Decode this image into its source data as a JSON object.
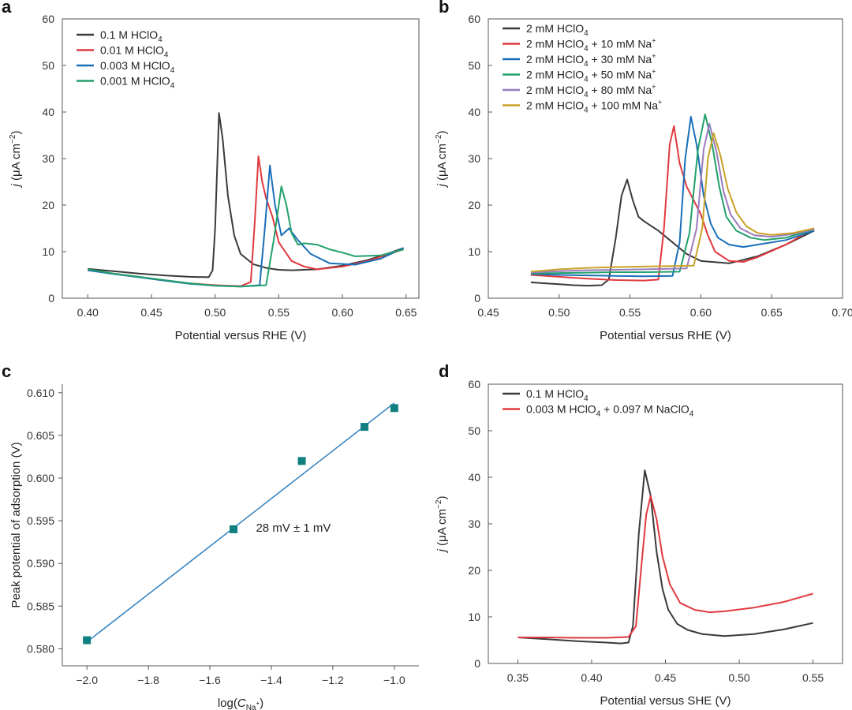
{
  "colors": {
    "black": "#3a3a3a",
    "red": "#e0393f",
    "blue": "#1a6fb8",
    "green": "#22a06b",
    "purple": "#9a7bbd",
    "gold": "#c9a227",
    "teal": "#0f7f80",
    "fitline": "#2f7fbf"
  },
  "chart_data": [
    {
      "panel": "a",
      "type": "line",
      "title": "",
      "xlabel": "Potential versus RHE (V)",
      "ylabel": "j (μA cm−2)",
      "ylabel_italic": "j",
      "ylabel_rest": " (μA cm",
      "ylabel_sup": "−2",
      "ylabel_close": ")",
      "xlim": [
        0.38,
        0.66
      ],
      "ylim": [
        0,
        60
      ],
      "xticks": [
        0.4,
        0.45,
        0.5,
        0.55,
        0.6,
        0.65
      ],
      "xtick_labels": [
        "0.40",
        "0.45",
        "0.50",
        "0.55",
        "0.60",
        "0.65"
      ],
      "yticks": [
        0,
        10,
        20,
        30,
        40,
        50,
        60
      ],
      "ytick_labels": [
        "0",
        "10",
        "20",
        "30",
        "40",
        "50",
        "60"
      ],
      "legend_position": "top-left",
      "series": [
        {
          "name": "0.1 M HClO4",
          "label_pre": "0.1 M HClO",
          "label_sub": "4",
          "label_post": "",
          "label_sup": "",
          "color": "black",
          "x": [
            0.4,
            0.42,
            0.44,
            0.46,
            0.48,
            0.495,
            0.498,
            0.5,
            0.503,
            0.506,
            0.51,
            0.515,
            0.52,
            0.53,
            0.54,
            0.55,
            0.56,
            0.58,
            0.6,
            0.62,
            0.64,
            0.648
          ],
          "y": [
            6.3,
            5.8,
            5.3,
            4.9,
            4.6,
            4.5,
            6.0,
            15.0,
            39.8,
            34.0,
            22.0,
            13.5,
            9.5,
            7.3,
            6.5,
            6.1,
            6.0,
            6.2,
            7.0,
            8.2,
            10.0,
            10.8
          ]
        },
        {
          "name": "0.01 M HClO4",
          "label_pre": "0.01 M HClO",
          "label_sub": "4",
          "label_post": "",
          "label_sup": "",
          "color": "red",
          "x": [
            0.4,
            0.42,
            0.44,
            0.46,
            0.48,
            0.5,
            0.52,
            0.528,
            0.531,
            0.534,
            0.537,
            0.54,
            0.545,
            0.55,
            0.56,
            0.57,
            0.58,
            0.6,
            0.62,
            0.64,
            0.648
          ],
          "y": [
            6.0,
            5.3,
            4.6,
            3.8,
            3.2,
            2.8,
            2.6,
            3.5,
            16.0,
            30.5,
            25.0,
            21.5,
            17.5,
            12.0,
            8.0,
            6.8,
            6.2,
            6.8,
            8.0,
            9.8,
            10.5
          ]
        },
        {
          "name": "0.003 M HClO4",
          "label_pre": "0.003 M HClO",
          "label_sub": "4",
          "label_post": "",
          "label_sup": "",
          "color": "blue",
          "x": [
            0.4,
            0.42,
            0.44,
            0.46,
            0.48,
            0.5,
            0.52,
            0.535,
            0.539,
            0.543,
            0.547,
            0.552,
            0.558,
            0.565,
            0.575,
            0.59,
            0.61,
            0.63,
            0.648
          ],
          "y": [
            6.0,
            5.2,
            4.5,
            3.8,
            3.1,
            2.7,
            2.5,
            2.8,
            15.0,
            28.5,
            20.0,
            13.5,
            15.0,
            12.5,
            9.5,
            7.5,
            7.2,
            8.5,
            10.8
          ]
        },
        {
          "name": "0.001 M HClO4",
          "label_pre": "0.001 M HClO",
          "label_sub": "4",
          "label_post": "",
          "label_sup": "",
          "color": "green",
          "x": [
            0.4,
            0.42,
            0.44,
            0.46,
            0.48,
            0.5,
            0.52,
            0.54,
            0.546,
            0.552,
            0.556,
            0.56,
            0.565,
            0.57,
            0.58,
            0.59,
            0.6,
            0.61,
            0.63,
            0.648
          ],
          "y": [
            6.2,
            5.3,
            4.6,
            3.9,
            3.2,
            2.7,
            2.5,
            2.8,
            12.5,
            24.0,
            20.0,
            14.0,
            11.5,
            11.8,
            11.5,
            10.5,
            9.8,
            9.0,
            9.2,
            10.5
          ]
        }
      ]
    },
    {
      "panel": "b",
      "type": "line",
      "title": "",
      "xlabel": "Potential versus RHE (V)",
      "ylabel": "j (μA cm−2)",
      "ylabel_italic": "j",
      "ylabel_rest": " (μA cm",
      "ylabel_sup": "−2",
      "ylabel_close": ")",
      "xlim": [
        0.45,
        0.7
      ],
      "ylim": [
        0,
        60
      ],
      "xticks": [
        0.45,
        0.5,
        0.55,
        0.6,
        0.65,
        0.7
      ],
      "xtick_labels": [
        "0.45",
        "0.50",
        "0.55",
        "0.60",
        "0.65",
        "0.70"
      ],
      "yticks": [
        0,
        10,
        20,
        30,
        40,
        50,
        60
      ],
      "ytick_labels": [
        "0",
        "10",
        "20",
        "30",
        "40",
        "50",
        "60"
      ],
      "legend_position": "top-left",
      "series": [
        {
          "name": "2 mM HClO4",
          "label_pre": "2 mM HClO",
          "label_sub": "4",
          "label_post": "",
          "label_sup": "",
          "color": "black",
          "x": [
            0.48,
            0.49,
            0.5,
            0.51,
            0.52,
            0.53,
            0.535,
            0.54,
            0.544,
            0.548,
            0.552,
            0.556,
            0.56,
            0.57,
            0.58,
            0.59,
            0.6,
            0.62,
            0.64,
            0.66,
            0.68
          ],
          "y": [
            3.4,
            3.2,
            3.0,
            2.8,
            2.7,
            2.8,
            4.0,
            13.0,
            22.0,
            25.5,
            21.0,
            17.5,
            16.5,
            14.5,
            12.0,
            9.5,
            8.0,
            7.5,
            9.0,
            11.5,
            14.5
          ]
        },
        {
          "name": "2 mM HClO4 + 10 mM Na+",
          "label_pre": "2 mM HClO",
          "label_sub": "4",
          "label_post": " + 10 mM Na",
          "label_sup": "+",
          "color": "red",
          "x": [
            0.48,
            0.5,
            0.52,
            0.54,
            0.56,
            0.57,
            0.574,
            0.578,
            0.581,
            0.585,
            0.59,
            0.595,
            0.6,
            0.605,
            0.61,
            0.62,
            0.63,
            0.64,
            0.66,
            0.68
          ],
          "y": [
            5.0,
            4.6,
            4.2,
            3.9,
            3.8,
            4.0,
            15.0,
            33.0,
            37.0,
            29.0,
            24.0,
            21.0,
            18.0,
            13.5,
            10.0,
            8.0,
            7.8,
            8.8,
            11.5,
            15.0
          ]
        },
        {
          "name": "2 mM HClO4 + 30 mM Na+",
          "label_pre": "2 mM HClO",
          "label_sub": "4",
          "label_post": " + 30 mM Na",
          "label_sup": "+",
          "color": "blue",
          "x": [
            0.48,
            0.5,
            0.52,
            0.54,
            0.56,
            0.58,
            0.585,
            0.589,
            0.593,
            0.597,
            0.602,
            0.607,
            0.612,
            0.62,
            0.63,
            0.64,
            0.66,
            0.68
          ],
          "y": [
            5.2,
            5.0,
            4.9,
            4.8,
            4.7,
            4.8,
            12.0,
            30.0,
            39.0,
            33.0,
            22.0,
            16.0,
            13.0,
            11.5,
            11.0,
            11.5,
            12.5,
            14.5
          ]
        },
        {
          "name": "2 mM HClO4 + 50 mM Na+",
          "label_pre": "2 mM HClO",
          "label_sub": "4",
          "label_post": " + 50 mM Na",
          "label_sup": "+",
          "color": "green",
          "x": [
            0.48,
            0.5,
            0.52,
            0.54,
            0.56,
            0.585,
            0.592,
            0.598,
            0.603,
            0.608,
            0.613,
            0.618,
            0.625,
            0.635,
            0.645,
            0.66,
            0.68
          ],
          "y": [
            5.3,
            5.4,
            5.5,
            5.6,
            5.6,
            5.7,
            14.0,
            32.0,
            39.5,
            33.0,
            24.0,
            17.5,
            14.5,
            13.0,
            12.5,
            13.0,
            14.8
          ]
        },
        {
          "name": "2 mM HClO4 + 80 mM Na+",
          "label_pre": "2 mM HClO",
          "label_sub": "4",
          "label_post": " + 80 mM Na",
          "label_sup": "+",
          "color": "purple",
          "x": [
            0.48,
            0.5,
            0.52,
            0.54,
            0.56,
            0.59,
            0.597,
            0.602,
            0.606,
            0.611,
            0.616,
            0.621,
            0.628,
            0.638,
            0.65,
            0.665,
            0.68
          ],
          "y": [
            5.5,
            5.8,
            6.0,
            6.1,
            6.2,
            6.4,
            15.0,
            32.0,
            37.5,
            31.5,
            23.0,
            18.0,
            15.0,
            13.5,
            13.2,
            13.8,
            14.8
          ]
        },
        {
          "name": "2 mM HClO4 + 100 mM Na+",
          "label_pre": "2 mM HClO",
          "label_sub": "4",
          "label_post": " + 100 mM Na",
          "label_sup": "+",
          "color": "gold",
          "x": [
            0.48,
            0.5,
            0.52,
            0.54,
            0.56,
            0.595,
            0.601,
            0.605,
            0.609,
            0.614,
            0.619,
            0.625,
            0.632,
            0.64,
            0.65,
            0.665,
            0.68
          ],
          "y": [
            5.7,
            6.2,
            6.5,
            6.7,
            6.8,
            7.0,
            15.0,
            30.0,
            35.5,
            30.5,
            23.5,
            18.5,
            15.5,
            14.0,
            13.6,
            14.0,
            15.0
          ]
        }
      ]
    },
    {
      "panel": "c",
      "type": "scatter",
      "title": "",
      "xlabel": "log(CNa+)",
      "xlabel_pre": "log(",
      "xlabel_italic": "C",
      "xlabel_sub": "Na",
      "xlabel_subsup": "+",
      "xlabel_close": ")",
      "ylabel": "Peak potential of adsorption (V)",
      "xlim": [
        -2.08,
        -0.92
      ],
      "ylim": [
        0.578,
        0.611
      ],
      "xticks": [
        -2.0,
        -1.8,
        -1.6,
        -1.4,
        -1.2,
        -1.0
      ],
      "xtick_labels": [
        "−2.0",
        "−1.8",
        "−1.6",
        "−1.4",
        "−1.2",
        "−1.0"
      ],
      "yticks": [
        0.58,
        0.585,
        0.59,
        0.595,
        0.6,
        0.605,
        0.61
      ],
      "ytick_labels": [
        "0.580",
        "0.585",
        "0.590",
        "0.595",
        "0.600",
        "0.605",
        "0.610"
      ],
      "points": {
        "x": [
          -2.0,
          -1.523,
          -1.301,
          -1.097,
          -1.0
        ],
        "y": [
          0.581,
          0.594,
          0.602,
          0.606,
          0.6082
        ]
      },
      "fit_line": {
        "x": [
          -2.0,
          -1.0
        ],
        "y": [
          0.5808,
          0.6088
        ]
      },
      "annotation": "28 mV ± 1 mV",
      "annotation_at": {
        "x": -1.45,
        "y": 0.5937
      }
    },
    {
      "panel": "d",
      "type": "line",
      "title": "",
      "xlabel": "Potential versus SHE (V)",
      "ylabel": "j (μA cm−2)",
      "ylabel_italic": "j",
      "ylabel_rest": " (μA cm",
      "ylabel_sup": "−2",
      "ylabel_close": ")",
      "xlim": [
        0.33,
        0.57
      ],
      "ylim": [
        0,
        60
      ],
      "xticks": [
        0.35,
        0.4,
        0.45,
        0.5,
        0.55
      ],
      "xtick_labels": [
        "0.35",
        "0.40",
        "0.45",
        "0.50",
        "0.55"
      ],
      "yticks": [
        0,
        10,
        20,
        30,
        40,
        50,
        60
      ],
      "ytick_labels": [
        "0",
        "10",
        "20",
        "30",
        "40",
        "50",
        "60"
      ],
      "legend_position": "top-left",
      "series": [
        {
          "name": "0.1 M HClO4",
          "label_pre": "0.1 M HClO",
          "label_sub": "4",
          "label_post": "",
          "label_sup": "",
          "color": "black",
          "x": [
            0.35,
            0.37,
            0.39,
            0.41,
            0.42,
            0.425,
            0.428,
            0.432,
            0.436,
            0.44,
            0.444,
            0.448,
            0.452,
            0.458,
            0.465,
            0.475,
            0.49,
            0.51,
            0.53,
            0.55
          ],
          "y": [
            5.6,
            5.2,
            4.8,
            4.5,
            4.3,
            4.5,
            8.0,
            28.0,
            41.5,
            36.0,
            24.0,
            16.0,
            11.5,
            8.5,
            7.2,
            6.3,
            5.9,
            6.3,
            7.3,
            8.7
          ]
        },
        {
          "name": "0.003 M HClO4 + 0.097 M NaClO4",
          "label_pre": "0.003 M HClO",
          "label_sub": "4",
          "label_post": " + 0.097 M NaClO",
          "label_sup": "",
          "label_sub2": "4",
          "color": "red",
          "x": [
            0.35,
            0.37,
            0.39,
            0.41,
            0.425,
            0.43,
            0.434,
            0.437,
            0.44,
            0.444,
            0.448,
            0.453,
            0.46,
            0.47,
            0.48,
            0.49,
            0.51,
            0.53,
            0.55
          ],
          "y": [
            5.6,
            5.6,
            5.5,
            5.5,
            5.7,
            8.0,
            22.0,
            32.0,
            36.0,
            31.0,
            23.0,
            17.0,
            13.0,
            11.5,
            11.0,
            11.2,
            12.0,
            13.2,
            15.0
          ]
        }
      ]
    }
  ]
}
